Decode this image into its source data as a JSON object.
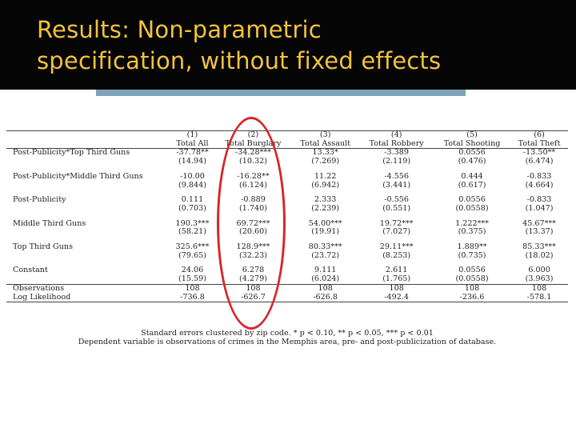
{
  "slide": {
    "title_line1": "Results: Non-parametric",
    "title_line2": "specification, without fixed effects"
  },
  "table": {
    "column_numbers": [
      "(1)",
      "(2)",
      "(3)",
      "(4)",
      "(5)",
      "(6)"
    ],
    "column_names": [
      "Total All",
      "Total Burglary",
      "Total Assault",
      "Total Robbery",
      "Total Shooting",
      "Total Theft"
    ],
    "rows": [
      {
        "label": "Post-Publicity*Top Third Guns",
        "coef": [
          "-37.78**",
          "-34.28***",
          "13.33*",
          "-3.389",
          "0.0556",
          "-13.50**"
        ],
        "se": [
          "(14.94)",
          "(10.32)",
          "(7.269)",
          "(2.119)",
          "(0.476)",
          "(6.474)"
        ]
      },
      {
        "label": "Post-Publicity*Middle Third Guns",
        "coef": [
          "-10.00",
          "-16.28**",
          "11.22",
          "-4.556",
          "0.444",
          "-0.833"
        ],
        "se": [
          "(9.844)",
          "(6.124)",
          "(6.942)",
          "(3.441)",
          "(0.617)",
          "(4.664)"
        ]
      },
      {
        "label": "Post-Publicity",
        "coef": [
          "0.111",
          "-0.889",
          "2.333",
          "-0.556",
          "0.0556",
          "-0.833"
        ],
        "se": [
          "(0.703)",
          "(1.740)",
          "(2.239)",
          "(0.551)",
          "(0.0558)",
          "(1.047)"
        ]
      },
      {
        "label": "Middle Third Guns",
        "coef": [
          "190.3***",
          "69.72***",
          "54.00***",
          "19.72***",
          "1.222***",
          "45.67***"
        ],
        "se": [
          "(58.21)",
          "(20.60)",
          "(19.91)",
          "(7.027)",
          "(0.375)",
          "(13.37)"
        ]
      },
      {
        "label": "Top Third Guns",
        "coef": [
          "325.6***",
          "128.9***",
          "80.33***",
          "29.11***",
          "1.889**",
          "85.33***"
        ],
        "se": [
          "(79.65)",
          "(32.23)",
          "(23.72)",
          "(8.253)",
          "(0.735)",
          "(18.02)"
        ]
      },
      {
        "label": "Constant",
        "coef": [
          "24.06",
          "6.278",
          "9.111",
          "2.611",
          "0.0556",
          "6.000"
        ],
        "se": [
          "(15.59)",
          "(4.279)",
          "(6.024)",
          "(1.765)",
          "(0.0558)",
          "(3.963)"
        ]
      }
    ],
    "observations_label": "Observations",
    "observations": [
      "108",
      "108",
      "108",
      "108",
      "108",
      "108"
    ],
    "loglik_label": "Log Likelihood",
    "loglik": [
      "-736.8",
      "-626.7",
      "-626.8",
      "-492.4",
      "-236.6",
      "-578.1"
    ]
  },
  "notes": {
    "line1": "Standard errors clustered by zip code. * p < 0.10, ** p < 0.05, *** p < 0.01",
    "line2": "Dependent variable is observations of crimes in the Memphis area, pre- and post-publicization of database."
  },
  "colors": {
    "title_bar": "#050505",
    "title_text": "#f2c23c",
    "accent_bar": "#7da2b5",
    "highlight": "#d8262b"
  }
}
